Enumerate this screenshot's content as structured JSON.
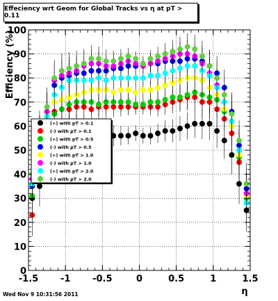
{
  "chart_data": {
    "type": "scatter",
    "title": "Effeciency wrt Geom for Global Tracks vs   η at pT > 0.11",
    "xlabel": "η",
    "ylabel": "Efficiency (%)",
    "xlim": [
      -1.5,
      1.5
    ],
    "ylim": [
      0,
      100
    ],
    "x_ticks": [
      "-1.5",
      "-1",
      "-0.5",
      "0",
      "0.5",
      "1",
      "1.5"
    ],
    "y_ticks": [
      "0",
      "10",
      "20",
      "30",
      "40",
      "50",
      "60",
      "70",
      "80",
      "90",
      "100"
    ],
    "grid": true,
    "legend_position": "left-middle",
    "x": [
      -1.45,
      -1.35,
      -1.25,
      -1.15,
      -1.05,
      -0.95,
      -0.85,
      -0.75,
      -0.65,
      -0.55,
      -0.45,
      -0.35,
      -0.25,
      -0.15,
      -0.05,
      0.05,
      0.15,
      0.25,
      0.35,
      0.45,
      0.55,
      0.65,
      0.75,
      0.85,
      0.95,
      1.05,
      1.15,
      1.25,
      1.35,
      1.45
    ],
    "series": [
      {
        "name": "(+) with pT > 0.1",
        "color": "#000000",
        "values": [
          30,
          35,
          50,
          56,
          57,
          58,
          58,
          58,
          57,
          57,
          57,
          56,
          56,
          56,
          57,
          56,
          56,
          57,
          58,
          58,
          59,
          60,
          61,
          61,
          61,
          58,
          54,
          48,
          36,
          25
        ]
      },
      {
        "name": "(-) with pT > 0.1",
        "color": "#ff0000",
        "values": [
          23,
          45,
          60,
          66,
          67,
          67,
          68,
          68,
          67,
          68,
          68,
          68,
          68,
          68,
          68,
          68,
          68,
          68,
          69,
          70,
          71,
          72,
          72,
          70,
          70,
          67,
          63,
          57,
          45,
          32
        ]
      },
      {
        "name": "(+) with pT > 0.5",
        "color": "#00cc00",
        "values": [
          31,
          54,
          62,
          65,
          67,
          69,
          70,
          70,
          70,
          69,
          70,
          70,
          70,
          70,
          69,
          69,
          70,
          70,
          71,
          72,
          72,
          73,
          74,
          73,
          72,
          71,
          66,
          60,
          47,
          30
        ]
      },
      {
        "name": "(-) with pT > 0.5",
        "color": "#0000ff",
        "values": [
          35,
          56,
          66,
          77,
          80,
          81,
          82,
          82,
          83,
          83,
          83,
          84,
          84,
          85,
          85,
          85,
          86,
          86,
          87,
          87,
          87,
          88,
          88,
          87,
          85,
          82,
          76,
          66,
          52,
          34
        ]
      },
      {
        "name": "(+) with pT > 1.0",
        "color": "#ffff00",
        "values": [
          38,
          56,
          66,
          70,
          71,
          72,
          73,
          74,
          75,
          75,
          75,
          74,
          75,
          75,
          74,
          75,
          75,
          76,
          77,
          78,
          79,
          80,
          80,
          79,
          76,
          73,
          67,
          60,
          48,
          31
        ]
      },
      {
        "name": "(-) with pT > 1.0",
        "color": "#ff00ff",
        "values": [
          38,
          56,
          66,
          79,
          81,
          82,
          83,
          85,
          86,
          86,
          85,
          85,
          86,
          87,
          86,
          85,
          86,
          87,
          88,
          89,
          90,
          90,
          89,
          86,
          82,
          77,
          70,
          62,
          50,
          32
        ]
      },
      {
        "name": "(+) with pT > 2.0",
        "color": "#00ffff",
        "values": [
          36,
          56,
          64,
          73,
          76,
          79,
          79,
          79,
          79,
          80,
          79,
          80,
          80,
          80,
          80,
          80,
          81,
          81,
          82,
          83,
          84,
          85,
          85,
          83,
          81,
          76,
          70,
          62,
          50,
          28
        ]
      },
      {
        "name": "(-) with pT > 2.0",
        "color": "#66cc44",
        "values": [
          40,
          58,
          68,
          80,
          83,
          84,
          85,
          86,
          88,
          88,
          87,
          87,
          88,
          89,
          88,
          86,
          88,
          89,
          90,
          91,
          92,
          93,
          92,
          89,
          85,
          80,
          73,
          65,
          54,
          36
        ]
      }
    ]
  },
  "footer": "Wed Nov  9 10:31:56 2011"
}
